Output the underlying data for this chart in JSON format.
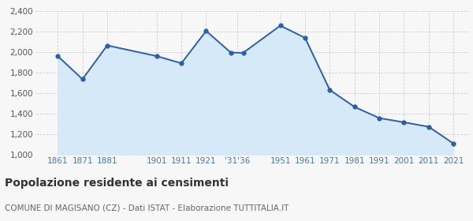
{
  "years": [
    1861,
    1871,
    1881,
    1901,
    1911,
    1921,
    1931,
    1936,
    1951,
    1961,
    1971,
    1981,
    1991,
    2001,
    2011,
    2021
  ],
  "population": [
    1961,
    1736,
    2065,
    1961,
    1891,
    2206,
    1995,
    1993,
    2258,
    2139,
    1631,
    1466,
    1357,
    1316,
    1272,
    1109
  ],
  "ylim": [
    1000,
    2400
  ],
  "yticks": [
    1000,
    1200,
    1400,
    1600,
    1800,
    2000,
    2200,
    2400
  ],
  "x_tick_positions": [
    1861,
    1871,
    1881,
    1901,
    1911,
    1921,
    1933.5,
    1951,
    1961,
    1971,
    1981,
    1991,
    2001,
    2011,
    2021
  ],
  "x_tick_labels": [
    "1861",
    "1871",
    "1881",
    "1901",
    "1911",
    "1921",
    "‱36",
    "1951",
    "1961",
    "1971",
    "1981",
    "1991",
    "2001",
    "2011",
    "2021"
  ],
  "xlim": [
    1852,
    2027
  ],
  "line_color": "#2b5faa",
  "fill_color": "#d6e9f8",
  "marker_color": "#2b5faa",
  "background_color": "#f7f7f7",
  "grid_color": "#d0d0d0",
  "title": "Popolazione residente ai censimenti",
  "subtitle": "COMUNE DI MAGISANO (CZ) - Dati ISTAT - Elaborazione TUTTITALIA.IT",
  "title_fontsize": 10,
  "subtitle_fontsize": 7.5,
  "tick_fontsize": 7.5,
  "ytick_color": "#555555",
  "xtick_color": "#4477bb"
}
